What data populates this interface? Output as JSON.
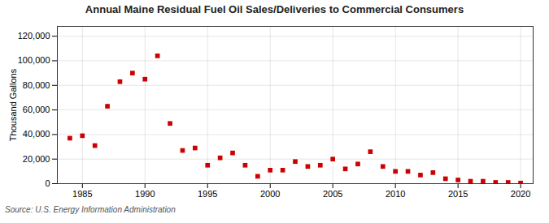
{
  "chart_data": {
    "type": "scatter",
    "title": "Annual Maine Residual Fuel Oil Sales/Deliveries to Commercial Consumers",
    "ylabel": "Thousand Gallons",
    "source": "Source: U.S. Energy Information Administration",
    "x": [
      1984,
      1985,
      1986,
      1987,
      1988,
      1989,
      1990,
      1991,
      1992,
      1993,
      1994,
      1995,
      1996,
      1997,
      1998,
      1999,
      2000,
      2001,
      2002,
      2003,
      2004,
      2005,
      2006,
      2007,
      2008,
      2009,
      2010,
      2011,
      2012,
      2013,
      2014,
      2015,
      2016,
      2017,
      2018,
      2019,
      2020
    ],
    "values": [
      37000,
      39000,
      31000,
      63000,
      83000,
      90000,
      85000,
      104000,
      49000,
      27000,
      29000,
      15000,
      21000,
      25000,
      15000,
      6000,
      11000,
      11000,
      18000,
      14000,
      15000,
      20000,
      12000,
      16000,
      26000,
      14000,
      10000,
      10000,
      7000,
      9000,
      4000,
      3000,
      2000,
      2000,
      1000,
      1000,
      500
    ],
    "color": "#cc0000",
    "marker": "square",
    "xlim": [
      1983,
      2021
    ],
    "xticks": [
      1985,
      1990,
      1995,
      2000,
      2005,
      2010,
      2015,
      2020
    ],
    "ylim": [
      0,
      128000
    ],
    "yticks": [
      0,
      {
        "value": 20000,
        "label": "20,000"
      },
      {
        "value": 40000,
        "label": "40,000"
      },
      {
        "value": 60000,
        "label": "60,000"
      },
      {
        "value": 80000,
        "label": "80,000"
      },
      {
        "value": 100000,
        "label": "100,000"
      },
      {
        "value": 120000,
        "label": "120,000"
      }
    ],
    "grid": true
  }
}
